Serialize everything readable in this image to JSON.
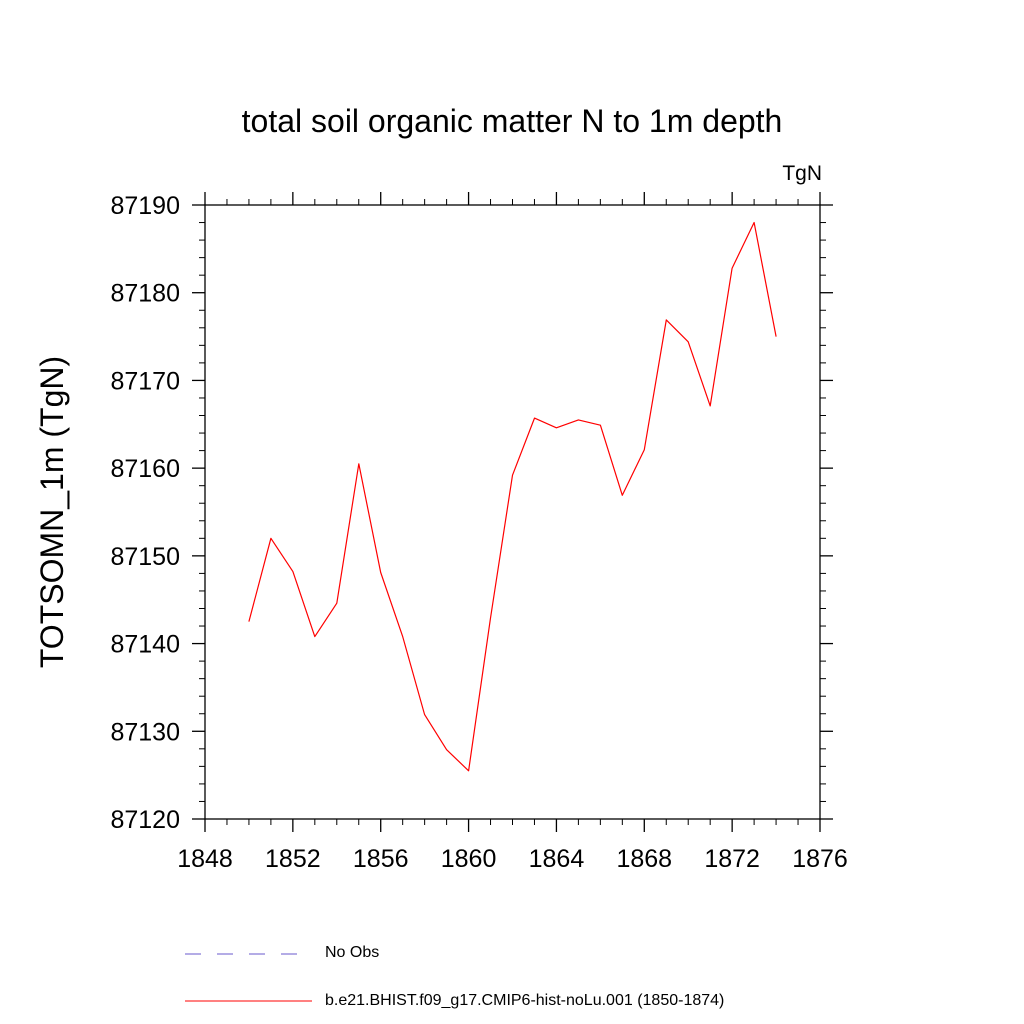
{
  "chart_data": {
    "type": "line",
    "title": "total soil organic matter N to 1m depth",
    "units_label": "TgN",
    "ylabel": "TOTSOMN_1m  (TgN)",
    "xlabel": "",
    "xlim": [
      1848,
      1876
    ],
    "ylim": [
      87120,
      87190
    ],
    "x_ticks": [
      "1848",
      "1852",
      "1856",
      "1860",
      "1864",
      "1868",
      "1872",
      "1876"
    ],
    "y_ticks": [
      "87120",
      "87130",
      "87140",
      "87150",
      "87160",
      "87170",
      "87180",
      "87190"
    ],
    "grid": false,
    "legend_position": "bottom",
    "series": [
      {
        "name": "b.e21.BHIST.f09_g17.CMIP6-hist-noLu.001 (1850-1874)",
        "color": "#ff0000",
        "style": "solid",
        "x": [
          1850,
          1851,
          1852,
          1853,
          1854,
          1855,
          1856,
          1857,
          1858,
          1859,
          1860,
          1861,
          1862,
          1863,
          1864,
          1865,
          1866,
          1867,
          1868,
          1869,
          1870,
          1871,
          1872,
          1873,
          1874
        ],
        "values": [
          87142.5,
          87152.0,
          87148.2,
          87140.8,
          87144.6,
          87160.5,
          87148.1,
          87140.8,
          87131.9,
          87127.9,
          87125.5,
          87142.9,
          87159.2,
          87165.7,
          87164.6,
          87165.5,
          87164.9,
          87156.9,
          87162.1,
          87176.9,
          87174.4,
          87167.1,
          87182.8,
          87188.0,
          87175.0
        ]
      }
    ],
    "legend": [
      {
        "label": "No Obs",
        "color": "#6a5acd",
        "style": "dashed"
      },
      {
        "label": "b.e21.BHIST.f09_g17.CMIP6-hist-noLu.001 (1850-1874)",
        "color": "#ff0000",
        "style": "solid"
      }
    ]
  }
}
